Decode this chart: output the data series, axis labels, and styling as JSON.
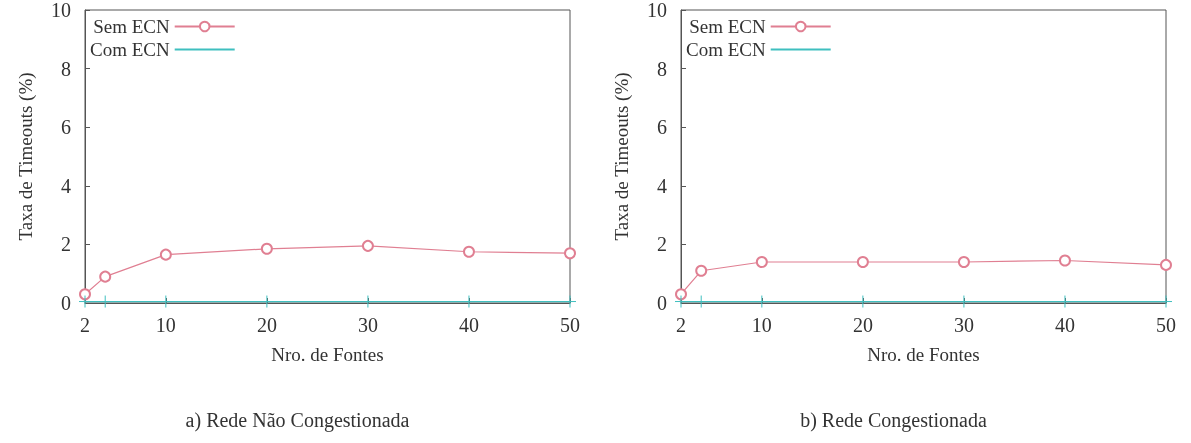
{
  "chart_data": [
    {
      "type": "line",
      "title": "a) Rede Não Congestionada",
      "xlabel": "Nro. de Fontes",
      "ylabel": "Taxa de Timeouts (%)",
      "x": [
        2,
        4,
        10,
        20,
        30,
        40,
        50
      ],
      "xlim": [
        2,
        50
      ],
      "xticks": [
        2,
        10,
        20,
        30,
        40,
        50
      ],
      "ylim": [
        0,
        10
      ],
      "yticks": [
        0,
        2,
        4,
        6,
        8,
        10
      ],
      "legend": "top left",
      "grid": false,
      "series": [
        {
          "name": "Sem ECN",
          "color": "#e07f92",
          "marker": "circle",
          "values": [
            0.3,
            0.9,
            1.65,
            1.85,
            1.95,
            1.75,
            1.7
          ]
        },
        {
          "name": "Com ECN",
          "color": "#3fbfbf",
          "marker": "cross",
          "values": [
            0.05,
            0.05,
            0.05,
            0.05,
            0.05,
            0.05,
            0.05
          ]
        }
      ]
    },
    {
      "type": "line",
      "title": "b) Rede Congestionada",
      "xlabel": "Nro. de Fontes",
      "ylabel": "Taxa de Timeouts (%)",
      "x": [
        2,
        4,
        10,
        20,
        30,
        40,
        50
      ],
      "xlim": [
        2,
        50
      ],
      "xticks": [
        2,
        10,
        20,
        30,
        40,
        50
      ],
      "ylim": [
        0,
        10
      ],
      "yticks": [
        0,
        2,
        4,
        6,
        8,
        10
      ],
      "legend": "top left",
      "grid": false,
      "series": [
        {
          "name": "Sem ECN",
          "color": "#e07f92",
          "marker": "circle",
          "values": [
            0.3,
            1.1,
            1.4,
            1.4,
            1.4,
            1.45,
            1.3
          ]
        },
        {
          "name": "Com ECN",
          "color": "#3fbfbf",
          "marker": "cross",
          "values": [
            0.05,
            0.05,
            0.05,
            0.05,
            0.05,
            0.05,
            0.05
          ]
        }
      ]
    }
  ]
}
